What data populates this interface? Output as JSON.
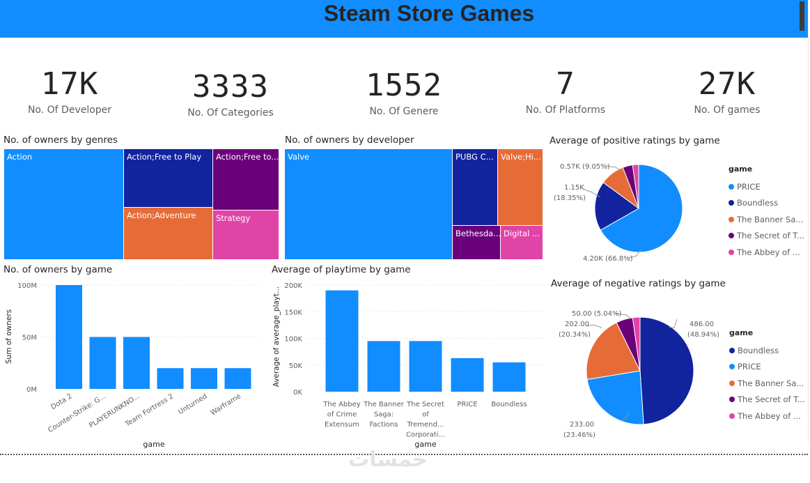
{
  "header": {
    "title": "Steam Store Games"
  },
  "kpis": [
    {
      "value": "17K",
      "label": "No. Of Developer"
    },
    {
      "value": "3333",
      "label": "No. Of Categories"
    },
    {
      "value": "1552",
      "label": "No. Of Genere"
    },
    {
      "value": "7",
      "label": "No. Of Platforms"
    },
    {
      "value": "27K",
      "label": "No. Of games"
    }
  ],
  "watermark": "خمسات",
  "colors": {
    "header": "#118DFF",
    "blue": "#118DFF",
    "navy": "#12239E",
    "orange": "#E66C37",
    "purple": "#6B007B",
    "pink": "#E044A7"
  },
  "chart_data": [
    {
      "type": "treemap",
      "title": "No. of owners by genres",
      "items": [
        {
          "label": "Action",
          "color": "#118DFF"
        },
        {
          "label": "Action;Free to Play",
          "color": "#12239E"
        },
        {
          "label": "Action;Free to...",
          "color": "#6B007B"
        },
        {
          "label": "Action;Adventure",
          "color": "#E66C37"
        },
        {
          "label": "Strategy",
          "color": "#E044A7"
        }
      ]
    },
    {
      "type": "treemap",
      "title": "No. of owners by developer",
      "items": [
        {
          "label": "Valve",
          "color": "#118DFF"
        },
        {
          "label": "PUBG C...",
          "color": "#12239E"
        },
        {
          "label": "Valve;Hi...",
          "color": "#E66C37"
        },
        {
          "label": "Bethesda...",
          "color": "#6B007B"
        },
        {
          "label": "Digital ...",
          "color": "#E044A7"
        }
      ]
    },
    {
      "type": "pie",
      "title": "Average of positive ratings by game",
      "legend_title": "game",
      "slices": [
        {
          "name": "PRICE",
          "value": 4200,
          "label": "4.20K (66.8%)",
          "color": "#118DFF"
        },
        {
          "name": "Boundless",
          "value": 1150,
          "label_value": "1.15K",
          "label_pct": "(18.35%)",
          "color": "#12239E"
        },
        {
          "name": "The Banner Sa...",
          "value": 570,
          "label": "0.57K (9.05%)",
          "color": "#E66C37"
        },
        {
          "name": "The Secret of T...",
          "value": 230,
          "color": "#6B007B"
        },
        {
          "name": "The Abbey of ...",
          "value": 140,
          "color": "#E044A7"
        }
      ]
    },
    {
      "type": "bar",
      "title": "No. of owners by game",
      "xlabel": "game",
      "ylabel": "Sum of owners",
      "yticks": [
        "0M",
        "50M",
        "100M"
      ],
      "ylim": [
        0,
        100
      ],
      "categories": [
        "Dota 2",
        "Counter-Strike: G...",
        "PLAYERUNKNO...",
        "Team Fortress 2",
        "Unturned",
        "Warframe"
      ],
      "values": [
        100,
        50,
        50,
        20,
        20,
        20
      ],
      "units": "millions"
    },
    {
      "type": "bar",
      "title": "Average of playtime by game",
      "xlabel": "game",
      "ylabel": "Average of average_playt...",
      "yticks": [
        "0K",
        "50K",
        "100K",
        "150K",
        "200K"
      ],
      "ylim": [
        0,
        200
      ],
      "categories": [
        [
          "The Abbey",
          "of Crime",
          "Extensum"
        ],
        [
          "The Banner",
          "Saga:",
          "Factions"
        ],
        [
          "The Secret",
          "of",
          "Tremend...",
          "Corporati..."
        ],
        [
          "PRICE"
        ],
        [
          "Boundless"
        ]
      ],
      "values": [
        190,
        95,
        95,
        63,
        55
      ],
      "units": "thousands"
    },
    {
      "type": "pie",
      "title": "Average of negative ratings by game",
      "legend_title": "game",
      "slices": [
        {
          "name": "Boundless",
          "value": 486,
          "label_value": "486.00",
          "label_pct": "(48.94%)",
          "color": "#12239E"
        },
        {
          "name": "PRICE",
          "value": 233,
          "label_value": "233.00",
          "label_pct": "(23.46%)",
          "color": "#118DFF"
        },
        {
          "name": "The Banner Sa...",
          "value": 202,
          "label_value": "202.00",
          "label_pct": "(20.34%)",
          "color": "#E66C37"
        },
        {
          "name": "The Secret of T...",
          "value": 50,
          "label": "50.00 (5.04%)",
          "color": "#6B007B"
        },
        {
          "name": "The Abbey of ...",
          "value": 22,
          "color": "#E044A7"
        }
      ]
    }
  ]
}
